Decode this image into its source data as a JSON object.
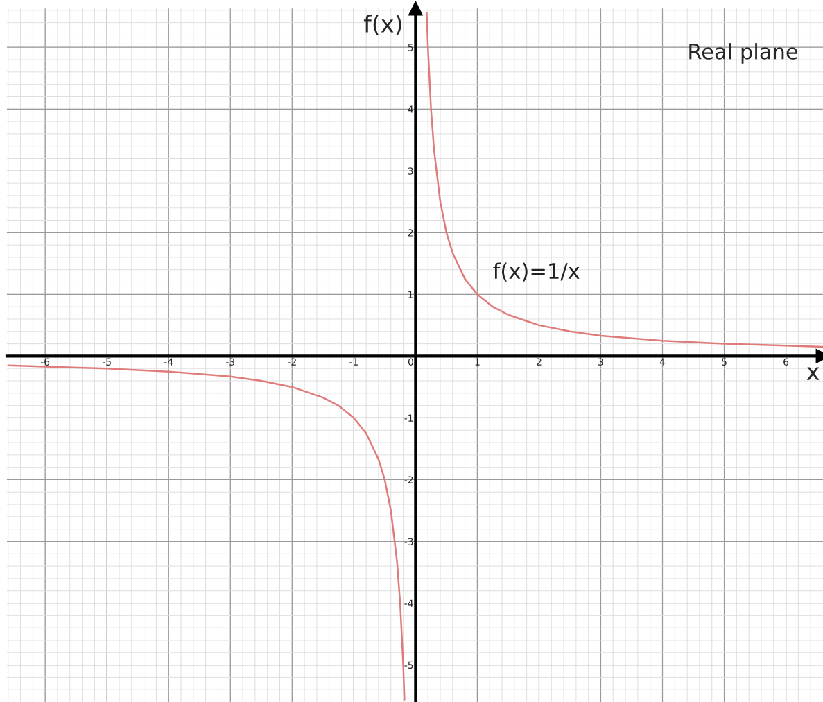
{
  "chart_data": {
    "type": "line",
    "xlabel": "x",
    "ylabel": "f(x)",
    "annotations": [
      "Real plane"
    ],
    "xlim": [
      -6.62,
      6.6
    ],
    "ylim": [
      -5.6,
      5.63
    ],
    "xticks": [
      -6,
      -5,
      -4,
      -3,
      -2,
      -1,
      0,
      1,
      2,
      3,
      4,
      5,
      6
    ],
    "yticks": [
      -5,
      -4,
      -3,
      -2,
      -1,
      1,
      2,
      3,
      4,
      5
    ],
    "grid": true,
    "legend": false,
    "marker": "none",
    "line_style": "solid",
    "series": [
      {
        "name": "f(x)=1/x",
        "color": "#e07b7b",
        "x": [
          -6.6,
          -6,
          -5,
          -4,
          -3,
          -2.5,
          -2,
          -1.5,
          -1.25,
          -1,
          -0.8,
          -0.6,
          -0.5,
          -0.4,
          -0.3,
          -0.25,
          -0.2,
          -0.18,
          0,
          0.18,
          0.2,
          0.25,
          0.3,
          0.4,
          0.5,
          0.6,
          0.8,
          1,
          1.25,
          1.5,
          2,
          2.5,
          3,
          4,
          5,
          6,
          6.6
        ],
        "values": [
          -0.15,
          -0.17,
          -0.2,
          -0.25,
          -0.33,
          -0.4,
          -0.5,
          -0.67,
          -0.8,
          -1,
          -1.25,
          -1.67,
          -2,
          -2.5,
          -3.33,
          -4,
          -5,
          -5.56,
          null,
          5.56,
          5,
          4,
          3.33,
          2.5,
          2,
          1.67,
          1.25,
          1,
          0.8,
          0.67,
          0.5,
          0.4,
          0.33,
          0.25,
          0.2,
          0.17,
          0.15
        ]
      }
    ]
  }
}
